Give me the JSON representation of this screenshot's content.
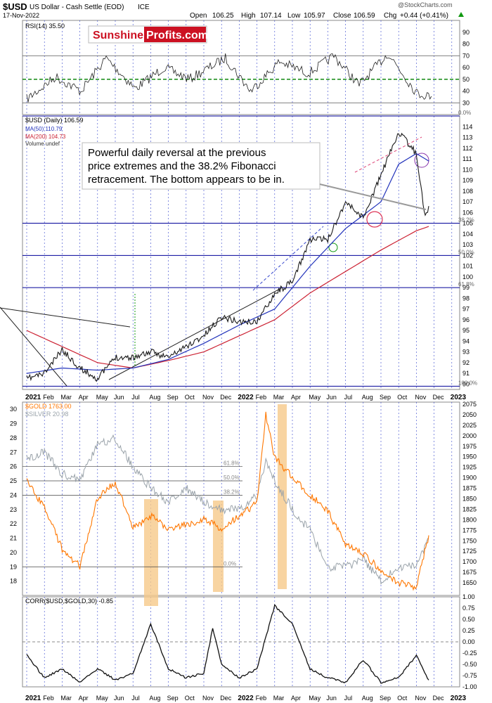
{
  "header": {
    "symbol": "$USD",
    "name": "US Dollar - Cash Settle (EOD)",
    "exchange": "ICE",
    "date": "17-Nov-2022",
    "open_label": "Open",
    "open": "106.25",
    "high_label": "High",
    "high": "107.14",
    "low_label": "Low",
    "low": "105.97",
    "close_label": "Close",
    "close": "106.59",
    "chg_label": "Chg",
    "chg": "+0.44 (+0.41%)",
    "watermark": "@StockCharts.com"
  },
  "logo": {
    "part1": "Sunshine",
    "part2": "Profits.com"
  },
  "annotation": "Powerful daily reversal at the previous price extremes and the 38.2% Fibonacci retracement. The bottom appears to be in.",
  "annotation_lines": [
    "Powerful daily reversal at the previous",
    "price extremes and the 38.2% Fibonacci",
    "retracement. The bottom appears to be in."
  ],
  "x_axis_labels": [
    "2021",
    "Feb",
    "Mar",
    "Apr",
    "May",
    "Jun",
    "Jul",
    "Aug",
    "Sep",
    "Oct",
    "Nov",
    "Dec",
    "2022",
    "Feb",
    "Mar",
    "Apr",
    "May",
    "Jun",
    "Jul",
    "Aug",
    "Sep",
    "Oct",
    "Nov",
    "Dec",
    "2023"
  ],
  "colors": {
    "usd": "#1a1a1a",
    "ma50": "#2233bb",
    "ma200": "#cc2233",
    "gold": "#ff7700",
    "silver": "#9aa3aa",
    "rsi_mid": "#118811",
    "fib": "#000099"
  },
  "chart_data": [
    {
      "type": "line",
      "panel": "rsi",
      "legend": "RSI(14) 35.50",
      "ylim": [
        20,
        100
      ],
      "y_ticks": [
        "90",
        "80",
        "70",
        "60",
        "50",
        "40",
        "30"
      ],
      "reference_lines": [
        70,
        50,
        30
      ],
      "last_value": 35.5,
      "approx_path": [
        [
          0,
          33
        ],
        [
          8,
          52
        ],
        [
          15,
          40
        ],
        [
          22,
          68
        ],
        [
          30,
          42
        ],
        [
          38,
          60
        ],
        [
          45,
          50
        ],
        [
          55,
          68
        ],
        [
          62,
          40
        ],
        [
          70,
          65
        ],
        [
          78,
          55
        ],
        [
          85,
          70
        ],
        [
          92,
          45
        ],
        [
          100,
          72
        ],
        [
          108,
          38
        ],
        [
          112,
          35.5
        ]
      ]
    },
    {
      "type": "line",
      "panel": "price",
      "title": "$USD (Daily) 106.59",
      "ylim": [
        89.5,
        115
      ],
      "y_ticks": [
        "114",
        "113",
        "112",
        "111",
        "110",
        "109",
        "108",
        "107",
        "106",
        "105",
        "104",
        "103",
        "102",
        "101",
        "100",
        "99",
        "98",
        "97",
        "96",
        "95",
        "94",
        "93",
        "92",
        "91",
        "90"
      ],
      "series": [
        {
          "name": "$USD (Daily) 106.59",
          "last": 106.59,
          "approx_path": [
            [
              0,
              90.5
            ],
            [
              1,
              91
            ],
            [
              2,
              93.2
            ],
            [
              3,
              91.5
            ],
            [
              4,
              90.5
            ],
            [
              5,
              92.5
            ],
            [
              6,
              92.5
            ],
            [
              7,
              93
            ],
            [
              8,
              92.5
            ],
            [
              9,
              93.5
            ],
            [
              10,
              94.5
            ],
            [
              11,
              96.3
            ],
            [
              12,
              95.8
            ],
            [
              13,
              95.8
            ],
            [
              14,
              98.5
            ],
            [
              15,
              99.5
            ],
            [
              16,
              103.5
            ],
            [
              17,
              103.5
            ],
            [
              18,
              107
            ],
            [
              19,
              105.5
            ],
            [
              20,
              109.5
            ],
            [
              21,
              113.5
            ],
            [
              22,
              111.5
            ],
            [
              22.5,
              105.5
            ],
            [
              22.7,
              106.6
            ]
          ]
        },
        {
          "name": "MA(50) 110.79",
          "last": 110.79,
          "approx_path": [
            [
              0,
              91
            ],
            [
              2,
              91.5
            ],
            [
              4,
              91.3
            ],
            [
              6,
              91.5
            ],
            [
              8,
              92.3
            ],
            [
              10,
              93.8
            ],
            [
              12,
              95.5
            ],
            [
              14,
              97
            ],
            [
              16,
              101
            ],
            [
              18,
              104.5
            ],
            [
              20,
              107
            ],
            [
              21,
              110.5
            ],
            [
              22,
              111.5
            ],
            [
              22.7,
              110.8
            ]
          ]
        },
        {
          "name": "MA(200) 104.73",
          "last": 104.73,
          "approx_path": [
            [
              0,
              95
            ],
            [
              2,
              93.5
            ],
            [
              4,
              92
            ],
            [
              6,
              91.5
            ],
            [
              8,
              92.2
            ],
            [
              10,
              93
            ],
            [
              12,
              94.5
            ],
            [
              14,
              96
            ],
            [
              16,
              98.5
            ],
            [
              18,
              100.5
            ],
            [
              20,
              102.5
            ],
            [
              22,
              104.3
            ],
            [
              22.7,
              104.7
            ]
          ]
        }
      ],
      "volume_legend": "Volume undef",
      "fibonacci_levels": [
        {
          "label": "0.0%",
          "value": 115
        },
        {
          "label": "38.2%",
          "value": 105
        },
        {
          "label": "50.0%",
          "value": 102
        },
        {
          "label": "61.8%",
          "value": 99
        },
        {
          "label": "100.0%",
          "value": 89.8
        }
      ]
    },
    {
      "type": "line",
      "panel": "gold-silver",
      "series": [
        {
          "name": "$GOLD 1763.00",
          "last": 1763.0,
          "axis": "right",
          "ylim": [
            1620,
            2080
          ],
          "approx_path": [
            [
              0,
              1890
            ],
            [
              1,
              1830
            ],
            [
              2,
              1730
            ],
            [
              3,
              1690
            ],
            [
              4,
              1850
            ],
            [
              5,
              1890
            ],
            [
              6,
              1780
            ],
            [
              7,
              1810
            ],
            [
              8,
              1780
            ],
            [
              9,
              1790
            ],
            [
              10,
              1800
            ],
            [
              11,
              1780
            ],
            [
              12,
              1810
            ],
            [
              13,
              1840
            ],
            [
              13.5,
              2050
            ],
            [
              14,
              1950
            ],
            [
              15,
              1900
            ],
            [
              16,
              1860
            ],
            [
              17,
              1820
            ],
            [
              18,
              1740
            ],
            [
              19,
              1720
            ],
            [
              20,
              1680
            ],
            [
              21,
              1650
            ],
            [
              22,
              1640
            ],
            [
              22.7,
              1763
            ]
          ]
        },
        {
          "name": "$SILVER 20.98",
          "last": 20.98,
          "axis": "left",
          "ylim": [
            17,
            30.5
          ],
          "approx_path": [
            [
              0,
              26.5
            ],
            [
              1,
              27
            ],
            [
              2,
              25.5
            ],
            [
              3,
              25
            ],
            [
              4,
              27.5
            ],
            [
              5,
              28
            ],
            [
              6,
              26
            ],
            [
              7,
              24.5
            ],
            [
              8,
              23.5
            ],
            [
              9,
              24.5
            ],
            [
              10,
              23.5
            ],
            [
              11,
              23
            ],
            [
              12,
              23
            ],
            [
              13,
              24
            ],
            [
              13.5,
              26.5
            ],
            [
              14,
              25
            ],
            [
              15,
              23
            ],
            [
              16,
              21.5
            ],
            [
              17,
              19
            ],
            [
              18,
              19
            ],
            [
              19,
              19.5
            ],
            [
              20,
              18
            ],
            [
              21,
              19
            ],
            [
              22,
              19
            ],
            [
              22.7,
              21
            ]
          ]
        }
      ],
      "left_ticks": [
        "30",
        "29",
        "28",
        "27",
        "26",
        "25",
        "24",
        "23",
        "22",
        "21",
        "20",
        "19",
        "18"
      ],
      "right_ticks": [
        "2075",
        "2050",
        "2025",
        "2000",
        "1975",
        "1950",
        "1925",
        "1900",
        "1875",
        "1850",
        "1825",
        "1800",
        "1775",
        "1750",
        "1725",
        "1700",
        "1675",
        "1650"
      ],
      "fibonacci_levels": [
        {
          "label": "61.8%",
          "value": 26
        },
        {
          "label": "50.0%",
          "value": 25
        },
        {
          "label": "38.2%",
          "value": 24
        },
        {
          "label": "0.0%",
          "value": 19
        }
      ]
    },
    {
      "type": "line",
      "panel": "correlation",
      "legend": "CORR($USD,$GOLD,30) -0.85",
      "ylim": [
        -1,
        1
      ],
      "y_ticks": [
        "1.00",
        "0.75",
        "0.50",
        "0.25",
        "0.00",
        "-0.25",
        "-0.50",
        "-0.75",
        "-1.00"
      ],
      "last_value": -0.85,
      "approx_path": [
        [
          0,
          -0.3
        ],
        [
          1,
          -0.8
        ],
        [
          2,
          -0.6
        ],
        [
          3,
          -0.9
        ],
        [
          4,
          -0.6
        ],
        [
          5,
          -0.85
        ],
        [
          6,
          -0.7
        ],
        [
          7,
          0.4
        ],
        [
          8,
          -0.6
        ],
        [
          9,
          -0.8
        ],
        [
          10,
          -0.7
        ],
        [
          10.5,
          0.3
        ],
        [
          11,
          -0.5
        ],
        [
          12,
          -0.8
        ],
        [
          13,
          -0.6
        ],
        [
          14,
          0.8
        ],
        [
          15,
          0.4
        ],
        [
          16,
          -0.6
        ],
        [
          17,
          -0.8
        ],
        [
          18,
          -0.9
        ],
        [
          19,
          -0.4
        ],
        [
          20,
          -0.9
        ],
        [
          21,
          -0.8
        ],
        [
          22,
          -0.3
        ],
        [
          22.7,
          -0.85
        ]
      ]
    }
  ]
}
